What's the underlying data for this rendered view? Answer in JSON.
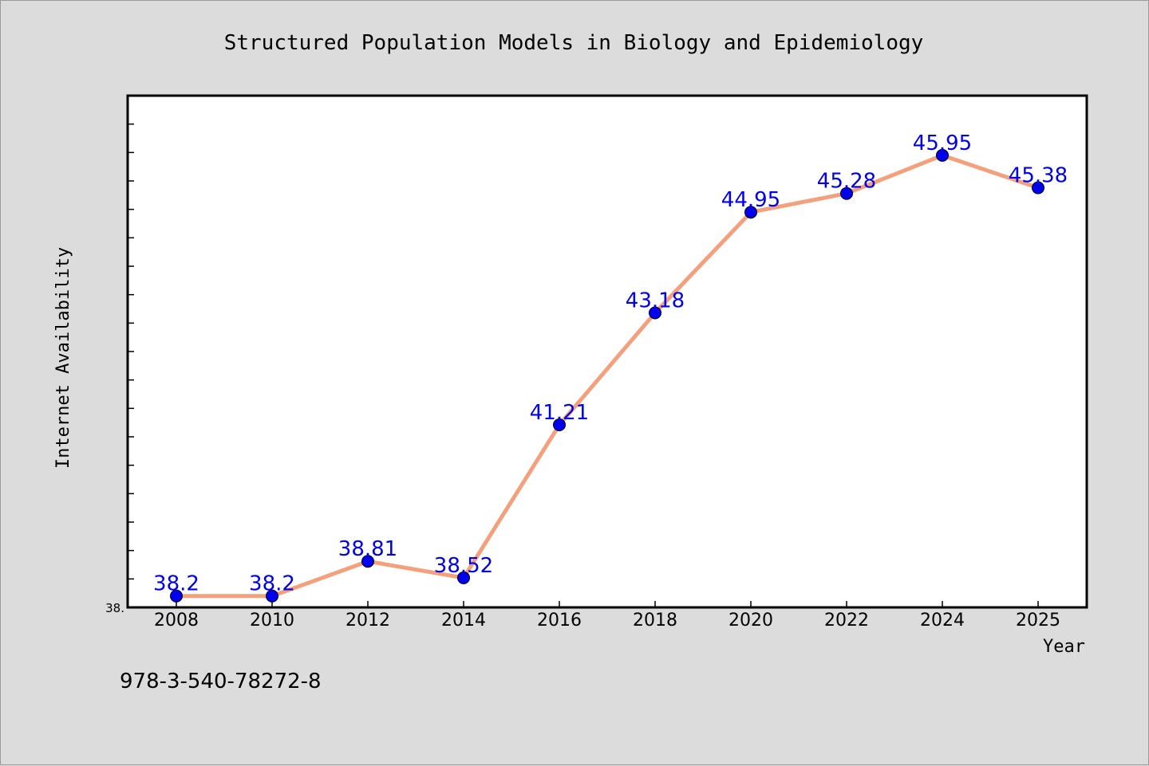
{
  "chart_data": {
    "type": "line",
    "title": "Structured Population Models in Biology and Epidemiology",
    "xlabel": "Year",
    "ylabel": "Internet Availability",
    "x": [
      "2008",
      "2010",
      "2012",
      "2014",
      "2016",
      "2018",
      "2020",
      "2022",
      "2024",
      "2025"
    ],
    "series": [
      {
        "values": [
          38.2,
          38.2,
          38.81,
          38.52,
          41.21,
          43.18,
          44.95,
          45.28,
          45.95,
          45.38
        ],
        "labels": [
          "38.2",
          "38.2",
          "38.81",
          "38.52",
          "41.21",
          "43.18",
          "44.95",
          "45.28",
          "45.95",
          "45.38"
        ]
      }
    ],
    "ylim": [
      38.0,
      47.0
    ],
    "y_tick_label": "38.",
    "grid": false,
    "colors": {
      "line": "#f4a07c",
      "marker": "#0000ee",
      "data_label": "#0000ee",
      "plot_bg": "#ffffff",
      "page_bg": "#dcdcdc"
    },
    "annotation": "978-3-540-78272-8"
  }
}
